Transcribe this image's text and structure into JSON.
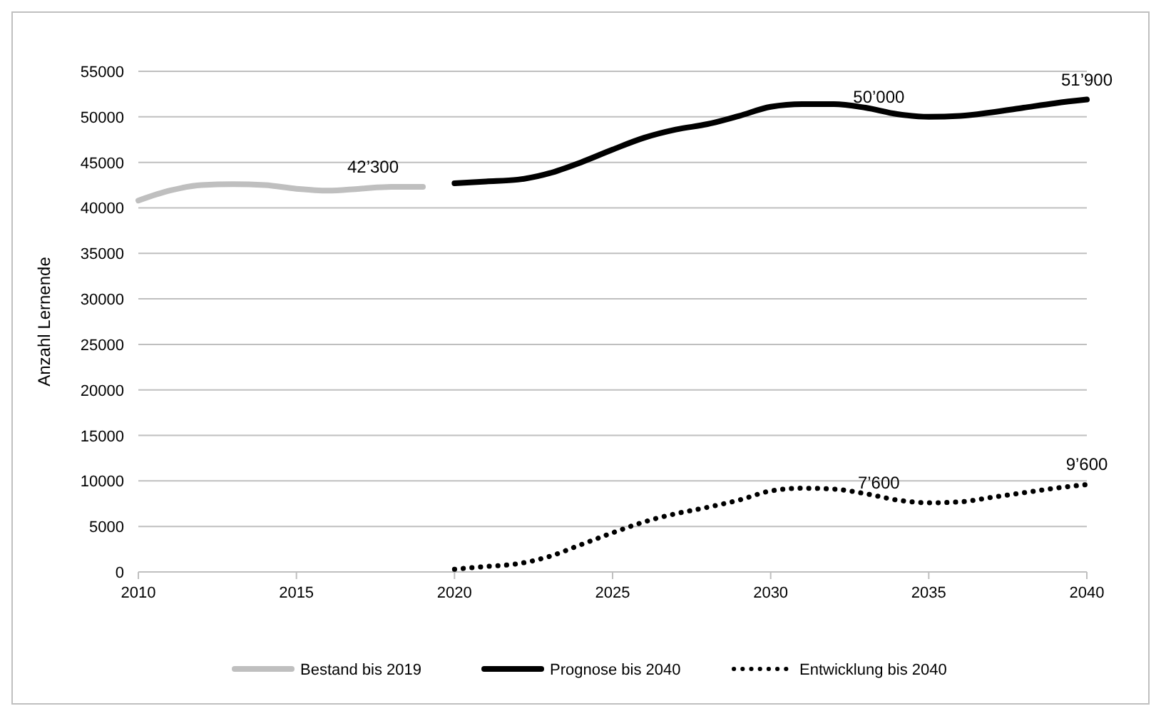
{
  "chart_data": {
    "type": "line",
    "ylabel": "Anzahl Lernende",
    "xlim": [
      2010,
      2040
    ],
    "xticks": [
      2010,
      2015,
      2020,
      2025,
      2030,
      2035,
      2040
    ],
    "ylim": [
      0,
      55000
    ],
    "yticks": [
      0,
      5000,
      10000,
      15000,
      20000,
      25000,
      30000,
      35000,
      40000,
      45000,
      50000,
      55000
    ],
    "grid": "y",
    "legend": "bottom",
    "marker": "none",
    "series": [
      {
        "name": "Bestand bis 2019",
        "color": "#bfbfbf",
        "line_style": "solid",
        "x": [
          2010,
          2011,
          2012,
          2013,
          2014,
          2015,
          2016,
          2017,
          2018,
          2019
        ],
        "values": [
          40800,
          41900,
          42500,
          42600,
          42500,
          42100,
          41900,
          42100,
          42300,
          42300
        ]
      },
      {
        "name": "Prognose bis 2040",
        "color": "#000000",
        "line_style": "solid",
        "x": [
          2020,
          2021,
          2022,
          2023,
          2024,
          2025,
          2026,
          2027,
          2028,
          2029,
          2030,
          2031,
          2032,
          2033,
          2034,
          2035,
          2036,
          2037,
          2038,
          2039,
          2040
        ],
        "values": [
          42700,
          42900,
          43100,
          43800,
          45000,
          46400,
          47700,
          48600,
          49200,
          50100,
          51100,
          51400,
          51400,
          51000,
          50300,
          50000,
          50100,
          50500,
          51000,
          51500,
          51900
        ]
      },
      {
        "name": "Entwicklung bis 2040",
        "color": "#000000",
        "line_style": "dotted",
        "x": [
          2020,
          2021,
          2022,
          2023,
          2024,
          2025,
          2026,
          2027,
          2028,
          2029,
          2030,
          2031,
          2032,
          2033,
          2034,
          2035,
          2036,
          2037,
          2038,
          2039,
          2040
        ],
        "values": [
          300,
          600,
          900,
          1700,
          3000,
          4300,
          5500,
          6400,
          7100,
          7900,
          8900,
          9200,
          9100,
          8600,
          7900,
          7600,
          7700,
          8200,
          8700,
          9200,
          9600
        ]
      }
    ],
    "annotations": [
      {
        "text": "42’300",
        "x": 2019,
        "y": 42300
      },
      {
        "text": "50’000",
        "x": 2035,
        "y": 50000
      },
      {
        "text": "51’900",
        "x": 2040,
        "y": 51900
      },
      {
        "text": "7’600",
        "x": 2035,
        "y": 7600
      },
      {
        "text": "9’600",
        "x": 2040,
        "y": 9600
      }
    ]
  }
}
